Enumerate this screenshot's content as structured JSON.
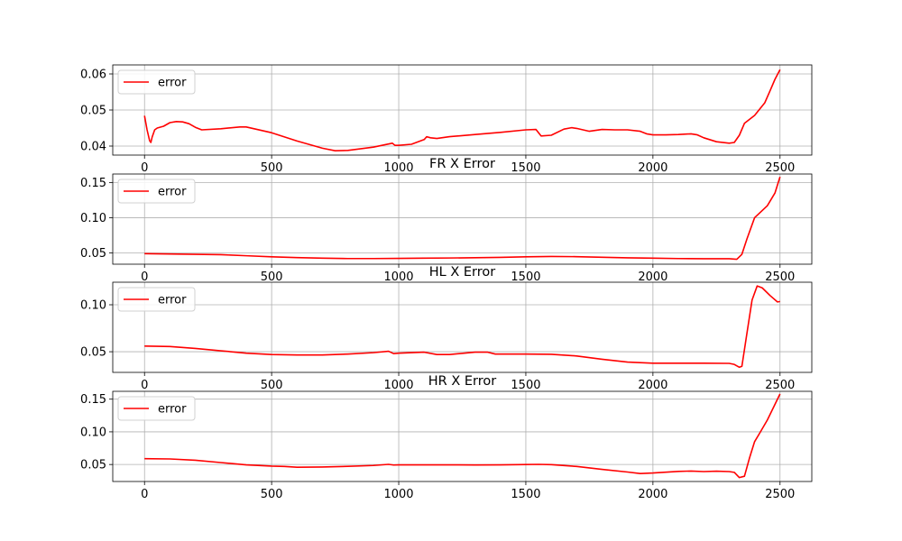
{
  "chart_data": [
    {
      "type": "line",
      "title": "",
      "xlabel": "",
      "ylabel": "",
      "xlim": [
        -125,
        2625
      ],
      "ylim": [
        0.0375,
        0.0625
      ],
      "xticks": [
        0,
        500,
        1000,
        1500,
        2000,
        2500
      ],
      "yticks": [
        0.04,
        0.05,
        0.06
      ],
      "ytick_labels": [
        "0.04",
        "0.05",
        "0.06"
      ],
      "grid": true,
      "legend": "upper left",
      "series": [
        {
          "name": "error",
          "color": "#ff0000",
          "x": [
            0,
            10,
            20,
            25,
            30,
            40,
            50,
            75,
            100,
            125,
            150,
            175,
            200,
            225,
            300,
            375,
            400,
            500,
            600,
            700,
            750,
            800,
            900,
            975,
            985,
            1000,
            1050,
            1100,
            1110,
            1125,
            1150,
            1200,
            1300,
            1400,
            1500,
            1540,
            1560,
            1600,
            1650,
            1680,
            1700,
            1750,
            1800,
            1850,
            1900,
            1950,
            1975,
            2000,
            2050,
            2100,
            2150,
            2175,
            2200,
            2250,
            2300,
            2320,
            2340,
            2360,
            2400,
            2440,
            2460,
            2480,
            2500
          ],
          "y": [
            0.0484,
            0.0445,
            0.0415,
            0.041,
            0.0425,
            0.0445,
            0.045,
            0.0455,
            0.0465,
            0.0468,
            0.0467,
            0.0462,
            0.0452,
            0.0445,
            0.0448,
            0.0453,
            0.0453,
            0.0437,
            0.0414,
            0.0394,
            0.0387,
            0.0388,
            0.0397,
            0.0408,
            0.0402,
            0.0402,
            0.0405,
            0.0418,
            0.0426,
            0.0423,
            0.0421,
            0.0426,
            0.0432,
            0.0438,
            0.0445,
            0.0446,
            0.0428,
            0.043,
            0.0447,
            0.0451,
            0.0449,
            0.0441,
            0.0446,
            0.0445,
            0.0445,
            0.0441,
            0.0434,
            0.0431,
            0.0431,
            0.0432,
            0.0434,
            0.0431,
            0.0423,
            0.0412,
            0.0408,
            0.041,
            0.043,
            0.0463,
            0.0485,
            0.052,
            0.0552,
            0.0585,
            0.0612
          ]
        }
      ]
    },
    {
      "type": "line",
      "title": "FR X Error",
      "xlabel": "",
      "ylabel": "",
      "xlim": [
        -125,
        2625
      ],
      "ylim": [
        0.034,
        0.162
      ],
      "xticks": [
        0,
        500,
        1000,
        1500,
        2000,
        2500
      ],
      "yticks": [
        0.05,
        0.1,
        0.15
      ],
      "ytick_labels": [
        "0.05",
        "0.10",
        "0.15"
      ],
      "grid": true,
      "legend": "upper left",
      "series": [
        {
          "name": "error",
          "color": "#ff0000",
          "x": [
            0,
            100,
            200,
            300,
            400,
            500,
            600,
            700,
            800,
            900,
            1000,
            1100,
            1200,
            1300,
            1400,
            1500,
            1600,
            1700,
            1800,
            1900,
            2000,
            2100,
            2200,
            2300,
            2330,
            2350,
            2370,
            2400,
            2450,
            2480,
            2500
          ],
          "y": [
            0.049,
            0.0485,
            0.048,
            0.0475,
            0.046,
            0.0445,
            0.0433,
            0.0425,
            0.042,
            0.042,
            0.0422,
            0.0425,
            0.0428,
            0.0432,
            0.0437,
            0.0445,
            0.045,
            0.0447,
            0.0438,
            0.043,
            0.0425,
            0.042,
            0.0418,
            0.0417,
            0.041,
            0.048,
            0.07,
            0.1,
            0.117,
            0.135,
            0.158
          ]
        }
      ]
    },
    {
      "type": "line",
      "title": "HL X Error",
      "xlabel": "",
      "ylabel": "",
      "xlim": [
        -125,
        2625
      ],
      "ylim": [
        0.028,
        0.124
      ],
      "xticks": [
        0,
        500,
        1000,
        1500,
        2000,
        2500
      ],
      "yticks": [
        0.05,
        0.1
      ],
      "ytick_labels": [
        "0.05",
        "0.10"
      ],
      "grid": true,
      "legend": "upper left",
      "series": [
        {
          "name": "error",
          "color": "#ff0000",
          "x": [
            0,
            100,
            200,
            300,
            400,
            500,
            600,
            700,
            800,
            900,
            960,
            980,
            1000,
            1100,
            1150,
            1200,
            1300,
            1350,
            1380,
            1400,
            1500,
            1600,
            1700,
            1800,
            1900,
            2000,
            2100,
            2200,
            2300,
            2320,
            2340,
            2350,
            2370,
            2390,
            2410,
            2430,
            2460,
            2490,
            2500
          ],
          "y": [
            0.056,
            0.0555,
            0.0535,
            0.051,
            0.0485,
            0.047,
            0.0465,
            0.0465,
            0.0475,
            0.049,
            0.0505,
            0.048,
            0.0485,
            0.0495,
            0.047,
            0.047,
            0.0495,
            0.0495,
            0.0475,
            0.0475,
            0.0475,
            0.0473,
            0.0455,
            0.042,
            0.039,
            0.0378,
            0.0378,
            0.0378,
            0.0376,
            0.0365,
            0.0335,
            0.0345,
            0.07,
            0.105,
            0.12,
            0.118,
            0.11,
            0.103,
            0.1035
          ]
        }
      ]
    },
    {
      "type": "line",
      "title": "HR X Error",
      "xlabel": "",
      "ylabel": "",
      "xlim": [
        -125,
        2625
      ],
      "ylim": [
        0.024,
        0.162
      ],
      "xticks": [
        0,
        500,
        1000,
        1500,
        2000,
        2500
      ],
      "yticks": [
        0.05,
        0.1,
        0.15
      ],
      "ytick_labels": [
        "0.05",
        "0.10",
        "0.15"
      ],
      "grid": true,
      "legend": "upper left",
      "series": [
        {
          "name": "error",
          "color": "#ff0000",
          "x": [
            0,
            100,
            200,
            300,
            400,
            500,
            550,
            600,
            700,
            800,
            900,
            960,
            980,
            1000,
            1100,
            1200,
            1300,
            1400,
            1500,
            1550,
            1600,
            1700,
            1800,
            1900,
            1950,
            2000,
            2100,
            2150,
            2200,
            2250,
            2300,
            2320,
            2340,
            2360,
            2380,
            2400,
            2420,
            2450,
            2480,
            2500
          ],
          "y": [
            0.059,
            0.0585,
            0.0565,
            0.053,
            0.0495,
            0.0475,
            0.047,
            0.0458,
            0.0462,
            0.0472,
            0.0485,
            0.0502,
            0.0492,
            0.0494,
            0.0495,
            0.0495,
            0.0493,
            0.0495,
            0.05,
            0.0502,
            0.0498,
            0.047,
            0.0425,
            0.0385,
            0.0362,
            0.037,
            0.0395,
            0.04,
            0.0392,
            0.0398,
            0.0392,
            0.038,
            0.03,
            0.032,
            0.06,
            0.085,
            0.098,
            0.118,
            0.142,
            0.158
          ]
        }
      ]
    }
  ]
}
